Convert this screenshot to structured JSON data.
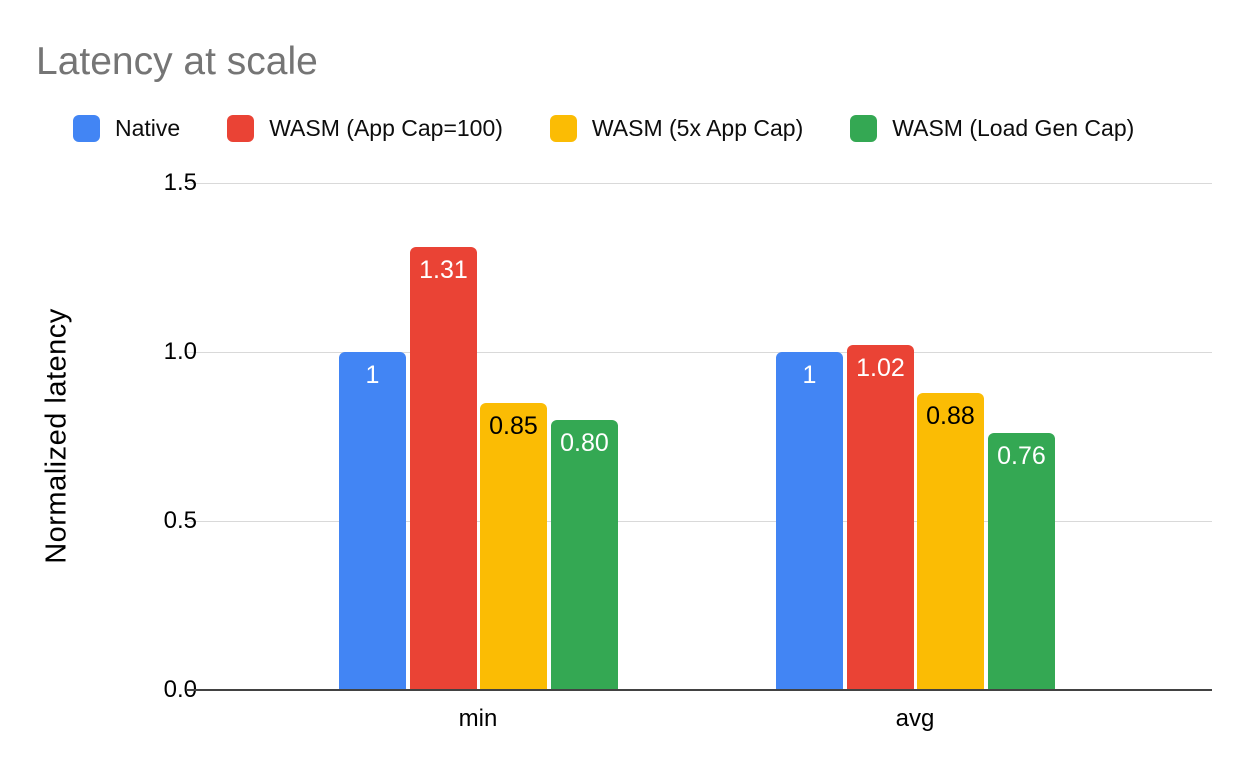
{
  "chart_data": {
    "type": "bar",
    "title": "Latency at scale",
    "title_color": "#757575",
    "categories": [
      "min",
      "avg"
    ],
    "series": [
      {
        "name": "Native",
        "color": "#4285F4",
        "values": [
          1,
          1
        ],
        "value_labels": [
          "1",
          "1"
        ],
        "label_color": "#ffffff"
      },
      {
        "name": "WASM (App Cap=100)",
        "color": "#EA4335",
        "values": [
          1.31,
          1.02
        ],
        "value_labels": [
          "1.31",
          "1.02"
        ],
        "label_color": "#ffffff"
      },
      {
        "name": "WASM (5x App Cap)",
        "color": "#FBBC04",
        "values": [
          0.85,
          0.88
        ],
        "value_labels": [
          "0.85",
          "0.88"
        ],
        "label_color": "#000000"
      },
      {
        "name": "WASM (Load Gen Cap)",
        "color": "#34A853",
        "values": [
          0.8,
          0.76
        ],
        "value_labels": [
          "0.80",
          "0.76"
        ],
        "label_color": "#ffffff"
      }
    ],
    "xlabel": "",
    "ylabel": "Normalized latency",
    "ylim": [
      0,
      1.5
    ],
    "yticks": [
      0.0,
      0.5,
      1.0,
      1.5
    ],
    "ytick_labels": [
      "0.0",
      "0.5",
      "1.0",
      "1.5"
    ],
    "grid": true,
    "gridline_color": "#d9d9d9",
    "axis_color": "#424242",
    "legend_position": "top",
    "background": "#ffffff"
  }
}
